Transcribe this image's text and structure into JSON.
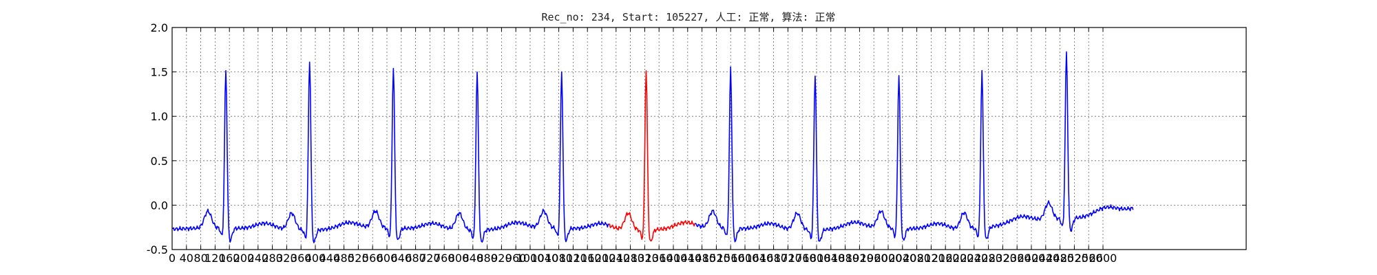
{
  "chart_data": {
    "type": "line",
    "title": "Rec_no: 234, Start: 105227, 人工: 正常, 算法: 正常",
    "xlabel": "",
    "ylabel": "",
    "xlim": [
      0,
      1500
    ],
    "ylim": [
      -0.5,
      2.0
    ],
    "grid": true,
    "y_ticks": [
      "-0.5",
      "0.0",
      "0.5",
      "1.0",
      "1.5",
      "2.0"
    ],
    "x_ticks": [
      "0",
      "40",
      "80",
      "120",
      "160",
      "200",
      "240",
      "280",
      "320",
      "360",
      "400",
      "440",
      "480",
      "520",
      "560",
      "600",
      "640",
      "680",
      "720",
      "760",
      "800",
      "840",
      "880",
      "920",
      "960",
      "1000",
      "1040",
      "1080",
      "1120",
      "1160",
      "1200",
      "1240",
      "1280",
      "1320",
      "1360",
      "1400",
      "1440",
      "1480",
      "1520",
      "1560",
      "1600",
      "1640",
      "1680",
      "1720",
      "1760",
      "1800",
      "1840",
      "1880",
      "1920",
      "1960",
      "2000",
      "2040",
      "2080",
      "2120",
      "2160",
      "2200",
      "2240",
      "2280",
      "2320",
      "2360",
      "2400",
      "2440",
      "2480",
      "2520",
      "2560",
      "2600"
    ],
    "x_tick_values": [
      0,
      20,
      40,
      60,
      80,
      100,
      120,
      140,
      160,
      180,
      200,
      220,
      240,
      260,
      280,
      300,
      320,
      340,
      360,
      380,
      400,
      420,
      440,
      460,
      480,
      500,
      520,
      540,
      560,
      580,
      600,
      620,
      640,
      660,
      680,
      700,
      720,
      740,
      760,
      780,
      800,
      820,
      840,
      860,
      880,
      900,
      920,
      940,
      960,
      980,
      1000,
      1020,
      1040,
      1060,
      1080,
      1100,
      1120,
      1140,
      1160,
      1180,
      1200,
      1220,
      1240,
      1260,
      1280,
      1300
    ],
    "beats": [
      75,
      192,
      309,
      426,
      544,
      662,
      780,
      898,
      1015,
      1131,
      1249
    ],
    "peaks": [
      1.44,
      1.55,
      1.47,
      1.41,
      1.41,
      1.44,
      1.45,
      1.39,
      1.38,
      1.42,
      1.64
    ],
    "signal_end": 1342,
    "series": [
      {
        "color": "#0000ff",
        "range": [
          0,
          610
        ]
      },
      {
        "color": "#ff0000",
        "range": [
          610,
          730
        ]
      },
      {
        "color": "#0000ff",
        "range": [
          730,
          1342
        ]
      }
    ]
  }
}
